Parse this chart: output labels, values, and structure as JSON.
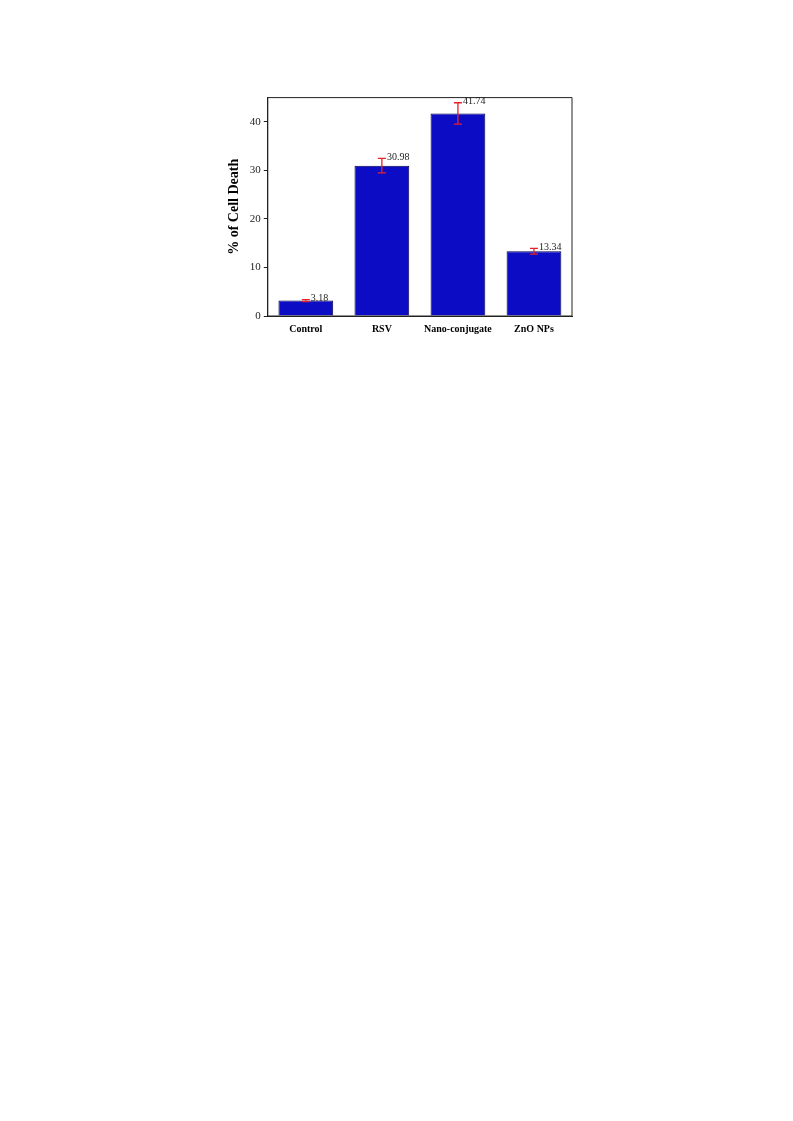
{
  "chart_data": {
    "type": "bar",
    "ylabel": "% of Cell Death",
    "categories": [
      "Control",
      "RSV",
      "Nano-conjugate",
      "ZnO NPs"
    ],
    "values": [
      3.18,
      30.98,
      41.74,
      13.34
    ],
    "errors": [
      0.2,
      1.5,
      2.2,
      0.6
    ],
    "color": "#0c0cc4",
    "data_labels": true,
    "ylim": [
      0,
      45
    ],
    "yticks": [
      0,
      10,
      20,
      30,
      40
    ],
    "grid": false,
    "legend": false
  }
}
